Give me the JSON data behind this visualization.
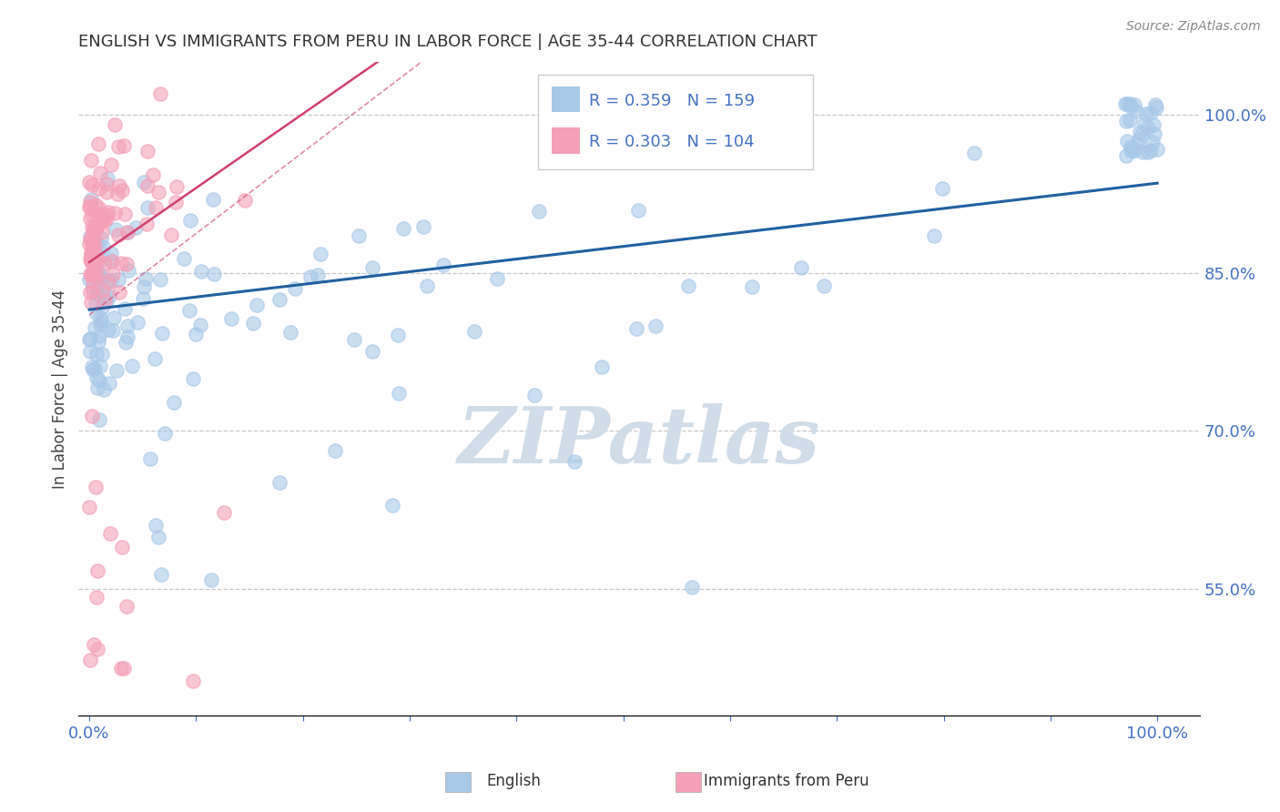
{
  "title": "ENGLISH VS IMMIGRANTS FROM PERU IN LABOR FORCE | AGE 35-44 CORRELATION CHART",
  "source": "Source: ZipAtlas.com",
  "ylabel": "In Labor Force | Age 35-44",
  "yaxis_values": [
    0.55,
    0.7,
    0.85,
    1.0
  ],
  "yaxis_labels": [
    "55.0%",
    "70.0%",
    "85.0%",
    "100.0%"
  ],
  "legend_english": "English",
  "legend_peru": "Immigrants from Peru",
  "r_english": 0.359,
  "n_english": 159,
  "r_peru": 0.303,
  "n_peru": 104,
  "color_english": "#a8c8e8",
  "color_peru": "#f4a0b8",
  "color_trend_english": "#2060a0",
  "color_trend_peru": "#d04070",
  "watermark": "ZIPatlas",
  "watermark_color": "#d0dde8",
  "ylim_low": 0.43,
  "ylim_high": 1.05,
  "xlim_low": -0.01,
  "xlim_high": 1.04,
  "eng_trend_x0": 0.0,
  "eng_trend_y0": 0.815,
  "eng_trend_x1": 1.0,
  "eng_trend_y1": 0.935,
  "peru_trend_x0": 0.0,
  "peru_trend_y0": 0.86,
  "peru_trend_x1": 0.27,
  "peru_trend_y1": 1.05,
  "peru_trend_dashed": true
}
